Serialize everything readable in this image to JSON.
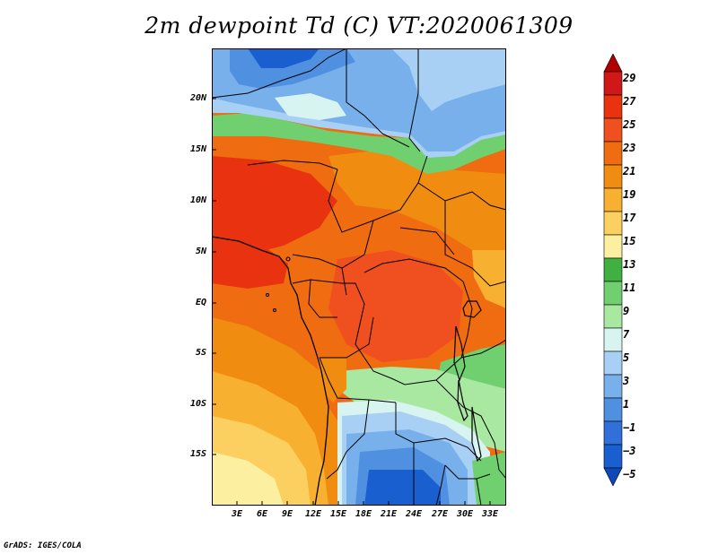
{
  "title": "2m dewpoint Td (C) VT:2020061309",
  "credit": "GrADS: IGES/COLA",
  "lat_labels": [
    "20N",
    "15N",
    "10N",
    "5N",
    "EQ",
    "5S",
    "10S",
    "15S"
  ],
  "lon_labels": [
    "3E",
    "6E",
    "9E",
    "12E",
    "15E",
    "18E",
    "21E",
    "24E",
    "27E",
    "30E",
    "33E"
  ],
  "colorbar": {
    "labels": [
      "29",
      "27",
      "25",
      "23",
      "21",
      "19",
      "17",
      "15",
      "13",
      "11",
      "9",
      "7",
      "5",
      "3",
      "1",
      "−1",
      "−3",
      "−5"
    ],
    "colors": [
      "#b00000",
      "#d01818",
      "#e83210",
      "#f05020",
      "#f06c10",
      "#f08c10",
      "#f8b030",
      "#fcd060",
      "#fcf0a0",
      "#40b040",
      "#70d070",
      "#a8e8a0",
      "#d8f4f0",
      "#a8d0f4",
      "#78b0ec",
      "#5090e0",
      "#3070d8",
      "#1a5fd0",
      "#0e48b8"
    ]
  },
  "map_colors": {
    "very_dry": "#1a5fd0",
    "dry": "#3070d8",
    "dry2": "#5090e0",
    "cool": "#78b0ec",
    "cool2": "#a8d0f4",
    "cyan": "#d8f4f0",
    "lightgreen": "#a8e8a0",
    "green": "#70d070",
    "darkgreen": "#40b040",
    "pale": "#fcf0a0",
    "yellow": "#fcd060",
    "lightorange": "#f8b030",
    "orange": "#f08c10",
    "deeporange": "#f06c10",
    "red": "#f05020",
    "darkred": "#e83210"
  }
}
